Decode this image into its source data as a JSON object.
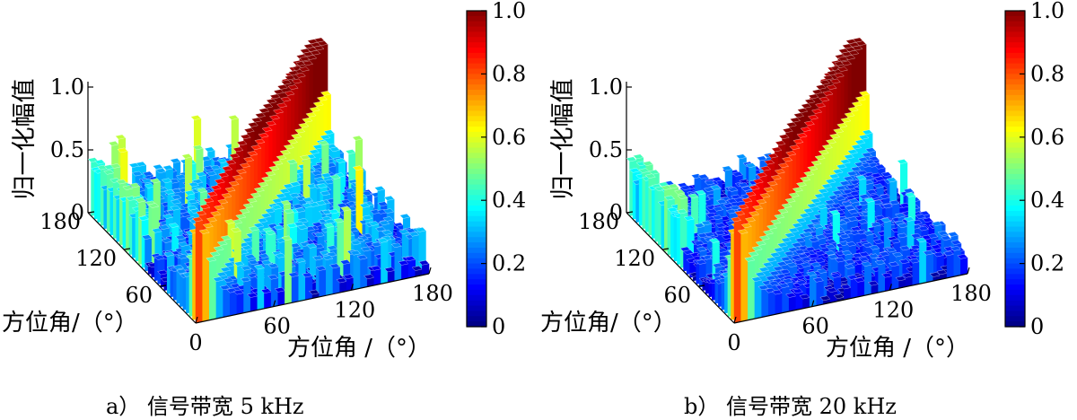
{
  "chart_data": [
    {
      "type": "surface",
      "caption": "a） 信号带宽 5 kHz",
      "zlabel": "归一化幅值",
      "xlabel": "方位角 /（°）",
      "ylabel": "方位角/（°）",
      "z_ticks": [
        "0",
        "0.5",
        "1.0"
      ],
      "x_ticks": [
        "0",
        "60",
        "120",
        "180"
      ],
      "y_ticks": [
        "60",
        "120",
        "180"
      ],
      "xlim": [
        0,
        180
      ],
      "ylim": [
        0,
        180
      ],
      "zlim": [
        0,
        1.0
      ],
      "colorbar_ticks": [
        "0",
        "0.2",
        "0.4",
        "0.6",
        "0.8",
        "1.0"
      ],
      "colormap": "jet",
      "ridge": {
        "along": "x = y",
        "peak": 1.0
      },
      "noise_level": 0.22
    },
    {
      "type": "surface",
      "caption": "b） 信号带宽 20 kHz",
      "zlabel": "归一化幅值",
      "xlabel": "方位角 /（°）",
      "ylabel": "方位角/（°）",
      "z_ticks": [
        "0",
        "0.5",
        "1.0"
      ],
      "x_ticks": [
        "0",
        "60",
        "120",
        "180"
      ],
      "y_ticks": [
        "60",
        "120",
        "180"
      ],
      "xlim": [
        0,
        180
      ],
      "ylim": [
        0,
        180
      ],
      "zlim": [
        0,
        1.0
      ],
      "colorbar_ticks": [
        "0",
        "0.2",
        "0.4",
        "0.6",
        "0.8",
        "1.0"
      ],
      "colormap": "jet",
      "ridge": {
        "along": "x = y",
        "peak": 1.0
      },
      "noise_level": 0.15
    }
  ]
}
